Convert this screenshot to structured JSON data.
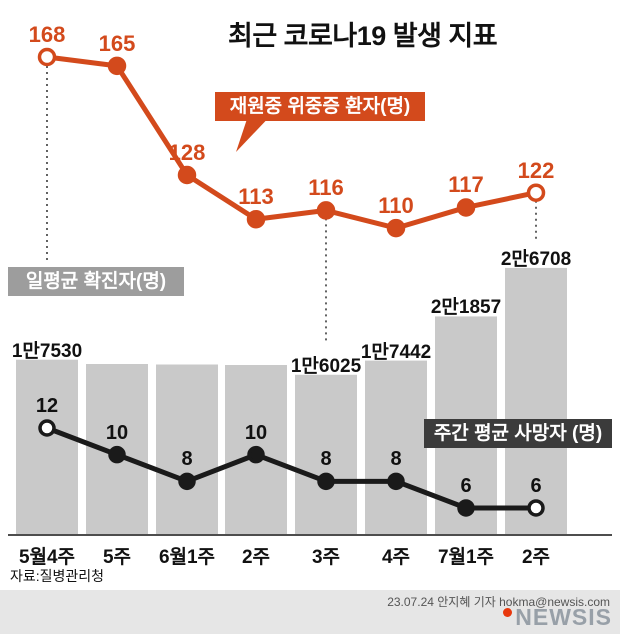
{
  "title": "최근 코로나19 발생 지표",
  "annotations": {
    "severe_label": "재원중 위중증 환자(명)",
    "confirmed_label": "일평균 확진자(명)",
    "deaths_label": "주간 평균 사망자 (명)"
  },
  "source": "자료:질병관리청",
  "footer": {
    "credit": "23.07.24 안지혜 기자 hokma@newsis.com",
    "logo_text": "NEWSIS"
  },
  "colors": {
    "orange": "#d34a1c",
    "bar_gray": "#c9c9c9",
    "gray_box": "#9d9d9d",
    "dark_box": "#3b3b3b",
    "black_line": "#1a1a1a",
    "footer_band": "#e6e6e6",
    "logo_gray": "#98a0a8",
    "logo_red": "#e8380d"
  },
  "chart_data": {
    "type": "combo",
    "title": "최근 코로나19 발생 지표",
    "categories": [
      "5월4주",
      "5주",
      "6월1주",
      "2주",
      "3주",
      "4주",
      "7월1주",
      "2주"
    ],
    "series": [
      {
        "name": "재원중 위중증 환자(명)",
        "type": "line",
        "color": "#d34a1c",
        "values": [
          168,
          165,
          128,
          113,
          116,
          110,
          117,
          122
        ]
      },
      {
        "name": "일평균 확진자(명)",
        "type": "bar",
        "color": "#c9c9c9",
        "values": [
          17530,
          17100,
          17050,
          17000,
          16025,
          17442,
          21857,
          26708
        ],
        "value_labels": [
          "1만7530",
          "",
          "",
          "",
          "1만6025",
          "1만7442",
          "2만1857",
          "2만6708"
        ]
      },
      {
        "name": "주간 평균 사망자 (명)",
        "type": "line",
        "color": "#1a1a1a",
        "values": [
          12,
          10,
          8,
          10,
          8,
          8,
          6,
          6
        ]
      }
    ],
    "legend_position": "inline-callouts",
    "grid": false
  }
}
